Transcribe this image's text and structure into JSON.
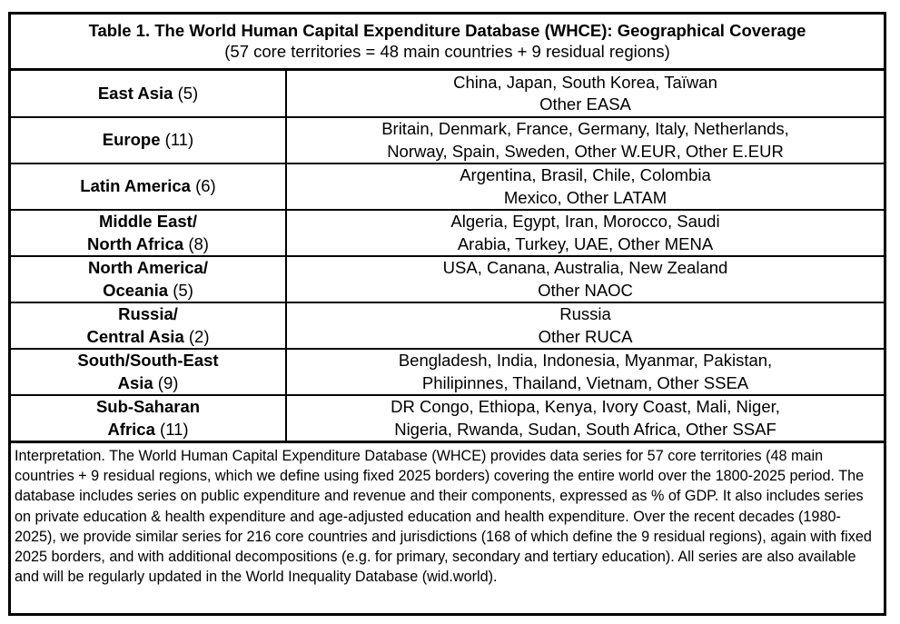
{
  "table": {
    "title": "Table 1. The World Human Capital Expenditure Database (WHCE): Geographical Coverage",
    "subtitle": "(57 core territories = 48 main countries + 9 residual regions)",
    "rows": [
      {
        "region_l1": "East Asia",
        "region_l2": "",
        "count": "(5)",
        "countries_l1": "China, Japan, South Korea, Taïwan",
        "countries_l2": "Other EASA"
      },
      {
        "region_l1": "Europe",
        "region_l2": "",
        "count": "(11)",
        "countries_l1": "Britain, Denmark, France, Germany, Italy, Netherlands,",
        "countries_l2": "Norway, Spain, Sweden, Other W.EUR, Other E.EUR"
      },
      {
        "region_l1": "Latin America",
        "region_l2": "",
        "count": "(6)",
        "countries_l1": "Argentina, Brasil, Chile, Colombia",
        "countries_l2": "Mexico, Other LATAM"
      },
      {
        "region_l1": "Middle East/",
        "region_l2": "North Africa",
        "count": "(8)",
        "countries_l1": "Algeria, Egypt, Iran, Morocco, Saudi",
        "countries_l2": "Arabia, Turkey, UAE, Other MENA"
      },
      {
        "region_l1": "North America/",
        "region_l2": "Oceania",
        "count": "(5)",
        "countries_l1": "USA, Canana, Australia, New Zealand",
        "countries_l2": "Other NAOC"
      },
      {
        "region_l1": "Russia/",
        "region_l2": "Central Asia",
        "count": "(2)",
        "countries_l1": "Russia",
        "countries_l2": "Other RUCA"
      },
      {
        "region_l1": "South/South-East",
        "region_l2": "Asia",
        "count": "(9)",
        "countries_l1": "Bengladesh, India, Indonesia, Myanmar, Pakistan,",
        "countries_l2": "Philipinnes, Thailand, Vietnam, Other SSEA"
      },
      {
        "region_l1": "Sub-Saharan",
        "region_l2": "Africa",
        "count": "(11)",
        "countries_l1": "DR Congo, Ethiopa, Kenya, Ivory Coast, Mali, Niger,",
        "countries_l2": "Nigeria, Rwanda, Sudan, South Africa, Other SSAF"
      }
    ],
    "interpretation": "Interpretation. The World Human Capital Expenditure Database (WHCE) provides data series for 57 core territories (48 main countries + 9 residual regions, which we define using fixed 2025 borders) covering the entire world over the 1800-2025 period. The database includes series on public expenditure and revenue and their components, expressed as % of GDP. It also includes series on private education & health expenditure and age-adjusted education and health expenditure. Over the recent decades (1980-2025), we provide similar series for 216 core countries and jurisdictions (168 of which define the 9 residual regions), again with fixed 2025 borders, and with additional decompositions (e.g. for primary, secondary and tertiary education). All series are also available and will be regularly updated in the World Inequality Database (wid.world)."
  }
}
